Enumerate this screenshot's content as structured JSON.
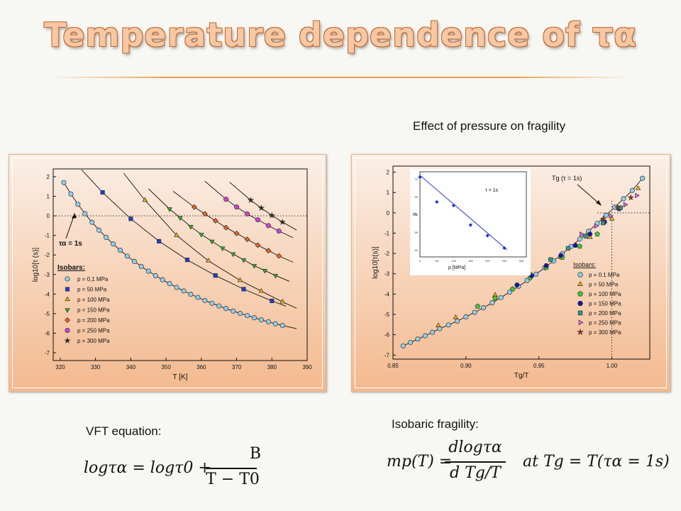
{
  "slide": {
    "title": "Temperature dependence of τα",
    "left_caption": "VFT equation:",
    "right_top_caption": "Effect of pressure on fragility",
    "right_caption": "Isobaric fragility:"
  },
  "equations": {
    "vft_lhs": "logτα = logτ0 +",
    "vft_num": "B",
    "vft_den": "T − T0",
    "frag_lhs": "mp(T) =",
    "frag_num": "dlogτα",
    "frag_den": "d Tg/T",
    "frag_cond": "at Tg = T(τα = 1s)"
  },
  "chart_data": [
    {
      "type": "scatter",
      "xlabel": "T [K]",
      "ylabel": "log10[τ (s)]",
      "xlim": [
        318,
        390
      ],
      "ylim": [
        -7.4,
        2.4
      ],
      "xticks": [
        320,
        330,
        340,
        350,
        360,
        370,
        380,
        390
      ],
      "yticks": [
        2,
        1,
        0,
        -1,
        -2,
        -3,
        -4,
        -5,
        -6,
        -7
      ],
      "reference_line": "y = 0 (dotted)",
      "annotation": "τα = 1s",
      "legend_title": "Isobars:",
      "series": [
        {
          "name": "p = 0,1 MPa",
          "marker": "circle",
          "color": "#8ecfee",
          "x": [
            321,
            323,
            325,
            327,
            329,
            331,
            333,
            335,
            337,
            339,
            341,
            343,
            345,
            347,
            349,
            351,
            353,
            355,
            357,
            359,
            361,
            363,
            365,
            367,
            369,
            371,
            373,
            375,
            377,
            379,
            381,
            383
          ],
          "y": [
            1.7,
            1.12,
            0.59,
            0.11,
            -0.33,
            -0.73,
            -1.1,
            -1.44,
            -1.76,
            -2.06,
            -2.33,
            -2.59,
            -2.83,
            -3.06,
            -3.27,
            -3.47,
            -3.66,
            -3.84,
            -4.01,
            -4.17,
            -4.33,
            -4.47,
            -4.61,
            -4.74,
            -4.87,
            -4.99,
            -5.1,
            -5.21,
            -5.32,
            -5.42,
            -5.52,
            -5.61
          ]
        },
        {
          "name": "p = 50 MPa",
          "marker": "square",
          "color": "#1c3fc8",
          "x": [
            332,
            340,
            348,
            356,
            364,
            372,
            380
          ],
          "y": [
            1.2,
            -0.15,
            -1.3,
            -2.25,
            -3.05,
            -3.75,
            -4.35
          ]
        },
        {
          "name": "p = 100 MPa",
          "marker": "triangle-up",
          "color": "#f6b000",
          "x": [
            344,
            353,
            362,
            371,
            377,
            383
          ],
          "y": [
            0.8,
            -1.0,
            -2.3,
            -3.3,
            -3.85,
            -4.4
          ]
        },
        {
          "name": "p = 150 MPa",
          "marker": "triangle-down",
          "color": "#2ab31c",
          "x": [
            351,
            354,
            357,
            360,
            363,
            366,
            369,
            372,
            375,
            378,
            381
          ],
          "y": [
            0.35,
            -0.1,
            -0.55,
            -0.95,
            -1.3,
            -1.65,
            -1.95,
            -2.25,
            -2.55,
            -2.8,
            -3.05
          ]
        },
        {
          "name": "p = 200 MPa",
          "marker": "diamond",
          "color": "#ee6420",
          "x": [
            358,
            361,
            364,
            367,
            370,
            373,
            376,
            379,
            382
          ],
          "y": [
            0.45,
            0.1,
            -0.25,
            -0.6,
            -0.9,
            -1.2,
            -1.5,
            -1.78,
            -2.05
          ]
        },
        {
          "name": "p = 250 MPa",
          "marker": "circle",
          "color": "#d040d8",
          "x": [
            367,
            370,
            373,
            376,
            379,
            382
          ],
          "y": [
            0.85,
            0.45,
            0.1,
            -0.2,
            -0.5,
            -0.78
          ]
        },
        {
          "name": "p = 300 MPa",
          "marker": "star",
          "color": "#222222",
          "x": [
            374,
            377,
            380,
            383
          ],
          "y": [
            0.8,
            0.4,
            0.02,
            -0.32
          ]
        }
      ]
    },
    {
      "type": "scatter",
      "xlabel": "Tg/T",
      "ylabel": "log10[τ(s)]",
      "xlim": [
        0.85,
        1.026
      ],
      "ylim": [
        -7.2,
        2.3
      ],
      "xticks": [
        0.85,
        0.9,
        0.95,
        1.0
      ],
      "yticks": [
        2,
        1,
        0,
        -1,
        -2,
        -3,
        -4,
        -5,
        -6,
        -7
      ],
      "annotation": "Tg (τ = 1s)",
      "legend_title": "Isobars:",
      "series": [
        {
          "name": "p = 0.1 MPa",
          "marker": "circle",
          "color": "#8ecfee",
          "x": [
            0.857,
            0.862,
            0.867,
            0.872,
            0.877,
            0.882,
            0.888,
            0.894,
            0.9,
            0.906,
            0.912,
            0.918,
            0.924,
            0.93,
            0.936,
            0.942,
            0.948,
            0.954,
            0.96,
            0.966,
            0.972,
            0.978,
            0.984,
            0.99,
            0.996,
            1.002,
            1.008,
            1.014,
            1.021
          ],
          "y": [
            -6.55,
            -6.38,
            -6.21,
            -6.05,
            -5.88,
            -5.7,
            -5.52,
            -5.33,
            -5.12,
            -4.9,
            -4.67,
            -4.43,
            -4.17,
            -3.9,
            -3.62,
            -3.33,
            -3.02,
            -2.7,
            -2.37,
            -2.02,
            -1.66,
            -1.29,
            -0.91,
            -0.52,
            -0.12,
            0.28,
            0.69,
            1.1,
            1.7
          ]
        },
        {
          "name": "p = 50 MPa",
          "marker": "triangle-up",
          "color": "#f6b000",
          "x": [
            0.881,
            0.893,
            0.92,
            0.945,
            0.965,
            0.985,
            1.0,
            1.018
          ],
          "y": [
            -5.55,
            -5.15,
            -4.05,
            -3.05,
            -2.2,
            -1.2,
            -0.3,
            1.2
          ]
        },
        {
          "name": "p = 100 MPa",
          "marker": "pentagon",
          "color": "#3cd02c",
          "x": [
            0.908,
            0.92,
            0.932,
            0.944,
            0.955,
            0.966,
            0.978,
            0.99
          ],
          "y": [
            -4.6,
            -4.2,
            -3.75,
            -3.2,
            -2.7,
            -2.2,
            -1.65,
            -1.05
          ]
        },
        {
          "name": "p = 150 MPa",
          "marker": "hexagon",
          "color": "#1414a8",
          "x": [
            0.935,
            0.945,
            0.955,
            0.965,
            0.975,
            0.985,
            0.995,
            1.005
          ],
          "y": [
            -3.55,
            -3.1,
            -2.6,
            -2.1,
            -1.6,
            -1.05,
            -0.45,
            0.2
          ]
        },
        {
          "name": "p = 200 MPa",
          "marker": "square",
          "color": "#2a9a8a",
          "x": [
            0.958,
            0.97,
            0.982,
            0.994,
            1.006
          ],
          "y": [
            -2.3,
            -1.75,
            -1.15,
            -0.5,
            0.25
          ]
        },
        {
          "name": "p = 250 MPa",
          "marker": "triangle-right",
          "color": "#e266e6",
          "x": [
            0.979,
            0.989,
            0.999,
            1.009,
            1.017
          ],
          "y": [
            -1.05,
            -0.65,
            -0.15,
            0.4,
            0.85
          ]
        },
        {
          "name": "p = 300 MPa",
          "marker": "star",
          "color": "#e0201c",
          "x": [
            0.994,
            1.004,
            1.013
          ],
          "y": [
            -0.3,
            0.25,
            0.75
          ]
        }
      ],
      "inset": {
        "type": "line",
        "xlabel": "p [MPa]",
        "ylabel": "m",
        "xlim": [
          0,
          315
        ],
        "ylim": [
          48,
          72
        ],
        "yticks": [
          50,
          55,
          60,
          65,
          70
        ],
        "xticks": [
          0,
          50,
          100,
          150,
          200,
          250,
          300
        ],
        "annotation": "τ = 1s",
        "x": [
          0.1,
          50,
          100,
          150,
          200,
          250
        ],
        "y": [
          70.5,
          63.5,
          62.5,
          57,
          54,
          50.5
        ]
      }
    }
  ]
}
